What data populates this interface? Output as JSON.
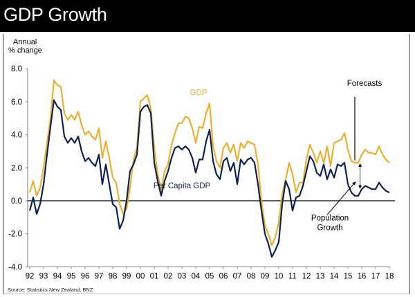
{
  "header": {
    "title": "GDP Growth"
  },
  "source": "Source: Statistics New Zealand, BNZ",
  "colors": {
    "gdp": "#EBB02F",
    "per_capita": "#0F2150",
    "axis": "#000000",
    "header_bg": "#000000"
  },
  "chart_data": {
    "type": "line",
    "title": "GDP Growth",
    "ylabel": "Annual\n% change",
    "ylabel_lines": [
      "Annual",
      "% change"
    ],
    "xlabel": "",
    "ylim": [
      -4,
      8
    ],
    "yticks": [
      8,
      6,
      4,
      2,
      0,
      -2,
      -4
    ],
    "ytick_labels": [
      "8.0",
      "6.0",
      "4.0",
      "2.0",
      "0.0",
      "-2.0",
      "-4.0"
    ],
    "xlim": [
      1992,
      2018
    ],
    "xtick_labels": [
      "92",
      "93",
      "94",
      "95",
      "96",
      "97",
      "98",
      "99",
      "00",
      "01",
      "02",
      "03",
      "04",
      "05",
      "06",
      "07",
      "08",
      "09",
      "10",
      "11",
      "12",
      "13",
      "14",
      "15",
      "16",
      "17",
      "18"
    ],
    "frequency": "quarterly",
    "x_start": 1992.0,
    "x_step": 0.25,
    "grid": false,
    "series": [
      {
        "name": "GDP",
        "color": "#EBB02F",
        "values": [
          0.5,
          1.2,
          0.3,
          0.8,
          2.0,
          3.5,
          5.0,
          7.3,
          7.0,
          6.9,
          5.3,
          4.9,
          5.2,
          4.9,
          5.4,
          4.6,
          4.0,
          4.2,
          3.9,
          3.7,
          4.4,
          2.6,
          3.6,
          2.6,
          1.4,
          1.1,
          -0.2,
          -0.8,
          -0.5,
          0.8,
          2.5,
          3.2,
          6.0,
          6.2,
          6.4,
          5.6,
          3.2,
          1.6,
          0.6,
          1.8,
          2.2,
          3.4,
          4.1,
          4.7,
          4.7,
          5.1,
          5.0,
          4.4,
          3.5,
          4.5,
          4.4,
          5.3,
          5.9,
          3.3,
          2.4,
          2.0,
          3.2,
          3.5,
          2.9,
          3.4,
          2.4,
          3.5,
          3.2,
          3.6,
          3.5,
          3.4,
          2.2,
          0.0,
          -1.5,
          -2.0,
          -2.7,
          -2.2,
          -1.3,
          0.4,
          1.3,
          2.3,
          1.6,
          0.5,
          1.1,
          1.1,
          2.5,
          3.4,
          2.9,
          2.3,
          3.0,
          2.3,
          3.3,
          2.1,
          3.5,
          3.6,
          3.7,
          4.1,
          3.1,
          2.4,
          2.3,
          2.3,
          2.8,
          3.1,
          2.9,
          2.9,
          2.8,
          3.3,
          2.8,
          2.5,
          2.3
        ]
      },
      {
        "name": "Per Capita GDP",
        "color": "#0F2150",
        "values": [
          -0.6,
          0.2,
          -0.8,
          -0.2,
          1.0,
          2.8,
          4.5,
          6.1,
          5.7,
          5.5,
          3.9,
          3.5,
          3.8,
          3.5,
          3.9,
          3.0,
          2.4,
          2.6,
          2.3,
          2.1,
          2.8,
          1.0,
          2.2,
          1.0,
          -0.2,
          -0.4,
          -1.7,
          -1.2,
          0.0,
          1.8,
          2.2,
          2.8,
          5.4,
          5.7,
          5.8,
          5.3,
          2.3,
          1.2,
          0.3,
          1.2,
          1.8,
          2.6,
          3.2,
          3.3,
          3.1,
          3.3,
          3.1,
          2.6,
          1.7,
          2.5,
          2.5,
          3.6,
          4.3,
          2.4,
          1.6,
          1.3,
          2.4,
          2.6,
          1.8,
          2.3,
          1.0,
          2.5,
          2.2,
          2.5,
          2.6,
          2.3,
          1.0,
          -0.6,
          -2.0,
          -2.6,
          -3.4,
          -3.0,
          -2.5,
          -0.2,
          1.2,
          0.7,
          -0.6,
          0.2,
          0.3,
          0.9,
          1.8,
          2.7,
          2.4,
          1.7,
          1.5,
          2.2,
          1.3,
          1.9,
          1.4,
          2.2,
          2.1,
          2.3,
          1.0,
          0.5,
          0.3,
          0.3,
          0.7,
          0.9,
          0.8,
          0.7,
          0.7,
          1.1,
          0.8,
          0.6,
          0.5
        ]
      }
    ],
    "annotations": [
      {
        "text": "GDP",
        "series": "GDP",
        "x": 2004.2,
        "y": 6.4
      },
      {
        "text": "Per Capita GDP",
        "series": "Per Capita GDP",
        "x": 2003.0,
        "y": 0.75
      },
      {
        "text": "Forecasts",
        "x": 2016.2,
        "y": 6.95,
        "marker": "vertical line at forecast start",
        "forecast_start": 2015.5
      },
      {
        "text": "Population Growth",
        "lines": [
          "Population",
          "Growth"
        ],
        "x": 2013.7,
        "y": -1.2,
        "marker": "arrow to gap between GDP and Per Capita GDP at ~2015.75"
      }
    ]
  }
}
